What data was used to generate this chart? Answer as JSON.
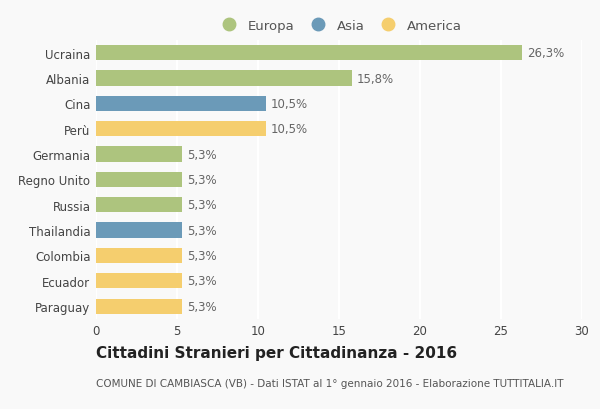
{
  "countries": [
    "Ucraina",
    "Albania",
    "Cina",
    "Perù",
    "Germania",
    "Regno Unito",
    "Russia",
    "Thailandia",
    "Colombia",
    "Ecuador",
    "Paraguay"
  ],
  "values": [
    26.3,
    15.8,
    10.5,
    10.5,
    5.3,
    5.3,
    5.3,
    5.3,
    5.3,
    5.3,
    5.3
  ],
  "labels": [
    "26,3%",
    "15,8%",
    "10,5%",
    "10,5%",
    "5,3%",
    "5,3%",
    "5,3%",
    "5,3%",
    "5,3%",
    "5,3%",
    "5,3%"
  ],
  "continents": [
    "Europa",
    "Europa",
    "Asia",
    "America",
    "Europa",
    "Europa",
    "Europa",
    "Asia",
    "America",
    "America",
    "America"
  ],
  "colors": {
    "Europa": "#adc47e",
    "Asia": "#6b9ab8",
    "America": "#f5ce6e"
  },
  "title": "Cittadini Stranieri per Cittadinanza - 2016",
  "subtitle": "COMUNE DI CAMBIASCA (VB) - Dati ISTAT al 1° gennaio 2016 - Elaborazione TUTTITALIA.IT",
  "xlim": [
    0,
    30
  ],
  "xticks": [
    0,
    5,
    10,
    15,
    20,
    25,
    30
  ],
  "background_color": "#f9f9f9",
  "grid_color": "#ffffff",
  "bar_height": 0.6,
  "label_fontsize": 8.5,
  "tick_fontsize": 8.5,
  "ytick_fontsize": 8.5,
  "title_fontsize": 11,
  "subtitle_fontsize": 7.5,
  "legend_fontsize": 9.5
}
